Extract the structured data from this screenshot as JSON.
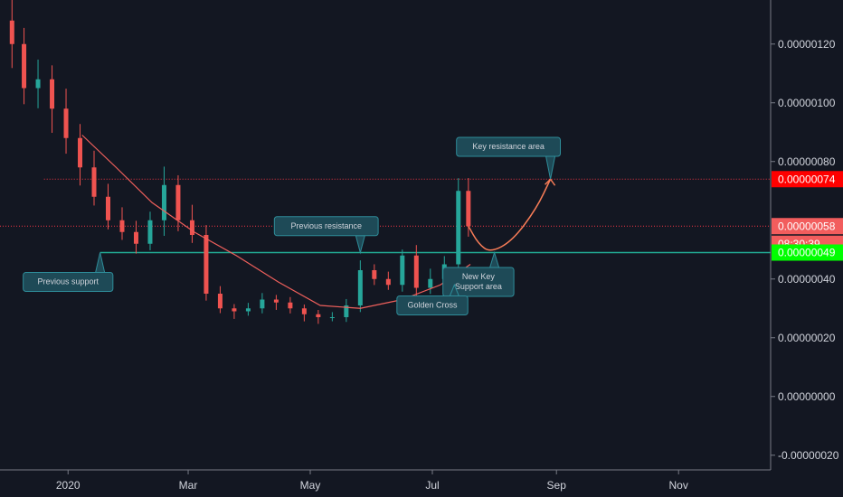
{
  "chart_data": {
    "type": "candlestick",
    "y_axis": {
      "ticks": [
        {
          "value": 1.2e-06,
          "label": "0.00000120"
        },
        {
          "value": 1e-06,
          "label": "0.00000100"
        },
        {
          "value": 8e-07,
          "label": "0.00000080"
        },
        {
          "value": 4e-07,
          "label": "0.00000040"
        },
        {
          "value": 2e-07,
          "label": "0.00000020"
        },
        {
          "value": 0.0,
          "label": "0.00000000"
        },
        {
          "value": -2e-07,
          "label": "-0.00000020"
        }
      ],
      "range": [
        -2.5e-07,
        1.35e-06
      ]
    },
    "x_axis": {
      "ticks": [
        {
          "date": "2020-01-01",
          "label": "2020"
        },
        {
          "date": "2020-03-01",
          "label": "Mar"
        },
        {
          "date": "2020-05-01",
          "label": "May"
        },
        {
          "date": "2020-07-01",
          "label": "Jul"
        },
        {
          "date": "2020-09-01",
          "label": "Sep"
        },
        {
          "date": "2020-11-01",
          "label": "Nov"
        }
      ],
      "range": [
        "2019-11-28",
        "2020-12-17"
      ]
    },
    "candles": [
      {
        "date": "2019-12-04",
        "open": 1.28e-06,
        "close": 1.2e-06
      },
      {
        "date": "2019-12-10",
        "open": 1.2e-06,
        "close": 1.05e-06
      },
      {
        "date": "2019-12-17",
        "open": 1.05e-06,
        "close": 1.08e-06
      },
      {
        "date": "2019-12-24",
        "open": 1.08e-06,
        "close": 9.8e-07
      },
      {
        "date": "2019-12-31",
        "open": 9.8e-07,
        "close": 8.8e-07
      },
      {
        "date": "2020-01-07",
        "open": 8.8e-07,
        "close": 7.8e-07
      },
      {
        "date": "2020-01-14",
        "open": 7.8e-07,
        "close": 6.8e-07
      },
      {
        "date": "2020-01-21",
        "open": 6.8e-07,
        "close": 6e-07
      },
      {
        "date": "2020-01-28",
        "open": 6e-07,
        "close": 5.6e-07
      },
      {
        "date": "2020-02-04",
        "open": 5.6e-07,
        "close": 5.2e-07
      },
      {
        "date": "2020-02-11",
        "open": 5.2e-07,
        "close": 6e-07
      },
      {
        "date": "2020-02-18",
        "open": 6e-07,
        "close": 7.2e-07
      },
      {
        "date": "2020-02-25",
        "open": 7.2e-07,
        "close": 6e-07
      },
      {
        "date": "2020-03-03",
        "open": 6e-07,
        "close": 5.5e-07
      },
      {
        "date": "2020-03-10",
        "open": 5.5e-07,
        "close": 3.5e-07
      },
      {
        "date": "2020-03-17",
        "open": 3.5e-07,
        "close": 3e-07
      },
      {
        "date": "2020-03-24",
        "open": 3e-07,
        "close": 2.9e-07
      },
      {
        "date": "2020-03-31",
        "open": 2.9e-07,
        "close": 3e-07
      },
      {
        "date": "2020-04-07",
        "open": 3e-07,
        "close": 3.3e-07
      },
      {
        "date": "2020-04-14",
        "open": 3.3e-07,
        "close": 3.2e-07
      },
      {
        "date": "2020-04-21",
        "open": 3.2e-07,
        "close": 3e-07
      },
      {
        "date": "2020-04-28",
        "open": 3e-07,
        "close": 2.8e-07
      },
      {
        "date": "2020-05-05",
        "open": 2.8e-07,
        "close": 2.7e-07
      },
      {
        "date": "2020-05-12",
        "open": 2.7e-07,
        "close": 2.7e-07
      },
      {
        "date": "2020-05-19",
        "open": 2.7e-07,
        "close": 3.1e-07
      },
      {
        "date": "2020-05-26",
        "open": 3.1e-07,
        "close": 4.3e-07
      },
      {
        "date": "2020-06-02",
        "open": 4.3e-07,
        "close": 4e-07
      },
      {
        "date": "2020-06-09",
        "open": 4e-07,
        "close": 3.8e-07
      },
      {
        "date": "2020-06-16",
        "open": 3.8e-07,
        "close": 4.8e-07
      },
      {
        "date": "2020-06-23",
        "open": 4.8e-07,
        "close": 3.7e-07
      },
      {
        "date": "2020-06-30",
        "open": 3.7e-07,
        "close": 4e-07
      },
      {
        "date": "2020-07-07",
        "open": 4e-07,
        "close": 4.5e-07
      },
      {
        "date": "2020-07-14",
        "open": 4.5e-07,
        "close": 7e-07
      },
      {
        "date": "2020-07-19",
        "open": 7e-07,
        "close": 5.8e-07
      }
    ],
    "moving_average": [
      {
        "date": "2020-01-08",
        "value": 8.9e-07
      },
      {
        "date": "2020-01-25",
        "value": 7.8e-07
      },
      {
        "date": "2020-02-12",
        "value": 6.6e-07
      },
      {
        "date": "2020-03-04",
        "value": 5.6e-07
      },
      {
        "date": "2020-03-25",
        "value": 4.8e-07
      },
      {
        "date": "2020-04-15",
        "value": 3.9e-07
      },
      {
        "date": "2020-05-06",
        "value": 3.1e-07
      },
      {
        "date": "2020-05-26",
        "value": 3e-07
      },
      {
        "date": "2020-06-16",
        "value": 3.3e-07
      },
      {
        "date": "2020-07-05",
        "value": 3.8e-07
      },
      {
        "date": "2020-07-20",
        "value": 4.5e-07
      }
    ],
    "levels": [
      {
        "name": "resistance",
        "value": 7.4e-07,
        "color": "#f23645",
        "style": "dotted",
        "start": "2019-12-20"
      },
      {
        "name": "current-price",
        "value": 5.8e-07,
        "color": "#f23645",
        "style": "dotted",
        "start": "2019-11-28"
      },
      {
        "name": "support",
        "value": 4.9e-07,
        "color": "#22ab94",
        "style": "solid",
        "start": "2020-01-17"
      }
    ],
    "projection": [
      {
        "date": "2020-07-19",
        "value": 5.8e-07
      },
      {
        "date": "2020-07-24",
        "value": 5.2e-07
      },
      {
        "date": "2020-07-30",
        "value": 4.9e-07
      },
      {
        "date": "2020-08-10",
        "value": 5.3e-07
      },
      {
        "date": "2020-08-22",
        "value": 6.4e-07
      },
      {
        "date": "2020-08-29",
        "value": 7.4e-07
      }
    ],
    "price_tags": [
      {
        "label": "0.00000074",
        "value": 7.4e-07,
        "bg": "#ff0000"
      },
      {
        "label": "0.00000058",
        "value": 5.8e-07,
        "bg": "#f25d5d"
      },
      {
        "label": "08:30:39",
        "value": 5.2e-07,
        "bg": "#f25d5d"
      },
      {
        "label": "0.00000049",
        "value": 4.9e-07,
        "bg": "#00ff00",
        "text_color": "#000000"
      }
    ],
    "annotations": [
      {
        "text": [
          "Previous support"
        ],
        "date": "2020-01-17",
        "value": 4.9e-07,
        "box_below": true,
        "box_date": "2020-01-01",
        "box_value": 3.9e-07
      },
      {
        "text": [
          "Previous resistance"
        ],
        "date": "2020-05-26",
        "value": 4.9e-07,
        "box_below": false,
        "box_date": "2020-05-09",
        "box_value": 5.8e-07
      },
      {
        "text": [
          "Key resistance area"
        ],
        "date": "2020-08-29",
        "value": 7.4e-07,
        "box_below": false,
        "box_date": "2020-08-08",
        "box_value": 8.5e-07
      },
      {
        "text": [
          "New Key",
          "Support area"
        ],
        "date": "2020-08-01",
        "value": 4.9e-07,
        "box_below": true,
        "box_date": "2020-07-24",
        "box_value": 3.9e-07
      },
      {
        "text": [
          "Golden Cross"
        ],
        "date": "2020-07-12",
        "value": 3.8e-07,
        "box_below": true,
        "box_date": "2020-07-01",
        "box_value": 3.1e-07
      }
    ],
    "colors": {
      "up": "#26a69a",
      "down": "#ef5350",
      "ma": "#f0605c",
      "projection": "#f77c57",
      "background": "#131722",
      "annotation_bg": "#1e4a57",
      "annotation_border": "#2e8c99"
    }
  }
}
